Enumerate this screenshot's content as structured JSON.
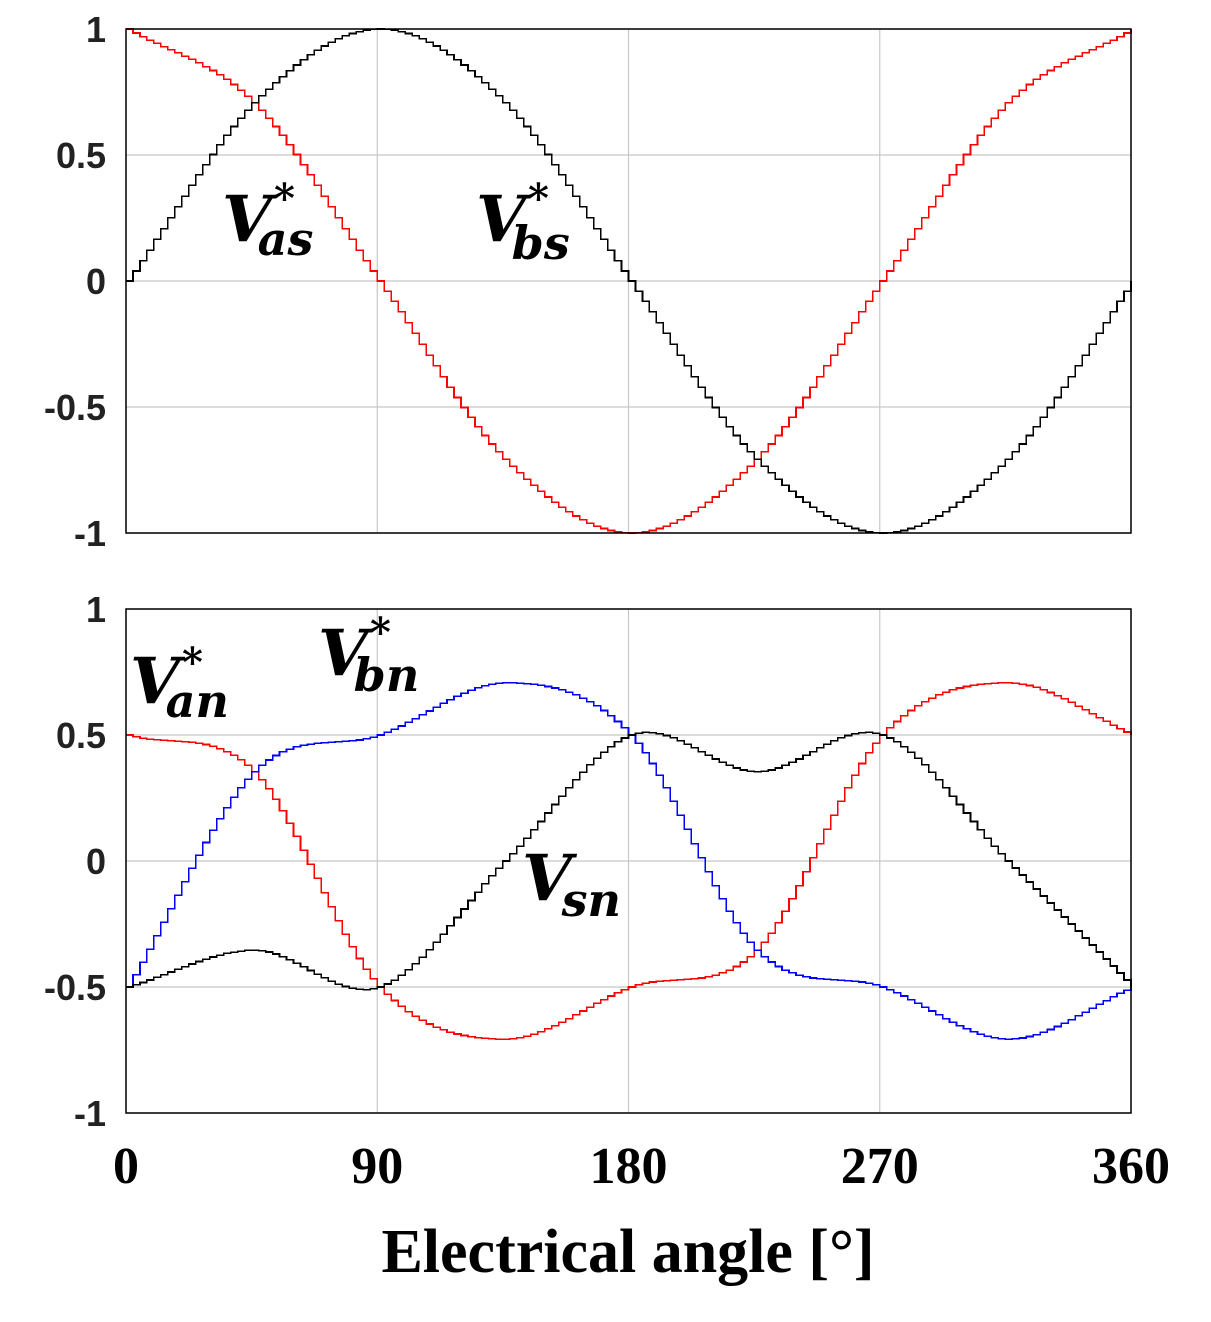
{
  "chart_data": [
    {
      "type": "line",
      "panel": "top",
      "xlim": [
        0,
        360
      ],
      "ylim": [
        -1,
        1
      ],
      "yticks": [
        1,
        0.5,
        0,
        -0.5,
        -1
      ],
      "ytick_labels": [
        "1",
        "0.5",
        "0",
        "-0.5",
        "-1"
      ],
      "xticks": [
        0,
        90,
        180,
        270,
        360
      ],
      "grid": true,
      "step_deg": 2.5,
      "series": [
        {
          "name": "V*as",
          "color": "#ff0000",
          "points": [
            [
              0,
              1.0
            ],
            [
              45,
              0.707
            ],
            [
              90,
              0.0
            ],
            [
              135,
              -0.707
            ],
            [
              180,
              -1.0
            ],
            [
              225,
              -0.707
            ],
            [
              270,
              0.0
            ],
            [
              315,
              0.707
            ],
            [
              360,
              1.0
            ]
          ]
        },
        {
          "name": "V*bs",
          "color": "#000000",
          "points": [
            [
              0,
              0.0
            ],
            [
              45,
              0.707
            ],
            [
              90,
              1.0
            ],
            [
              135,
              0.707
            ],
            [
              180,
              0.0
            ],
            [
              225,
              -0.707
            ],
            [
              270,
              -1.0
            ],
            [
              315,
              -0.707
            ],
            [
              360,
              0.0
            ]
          ]
        }
      ],
      "annotations": [
        {
          "main": "V",
          "sub": "as",
          "sup": "*"
        },
        {
          "main": "V",
          "sub": "bs",
          "sup": "*"
        }
      ]
    },
    {
      "type": "line",
      "panel": "bottom",
      "xlim": [
        0,
        360
      ],
      "ylim": [
        -1,
        1
      ],
      "yticks": [
        1,
        0.5,
        0,
        -0.5,
        -1
      ],
      "ytick_labels": [
        "1",
        "0.5",
        "0",
        "-0.5",
        "-1"
      ],
      "xticks": [
        0,
        90,
        180,
        270,
        360
      ],
      "xtick_labels": [
        "0",
        "90",
        "180",
        "270",
        "360"
      ],
      "xlabel": "Electrical angle [°]",
      "grid": true,
      "step_deg": 2.5,
      "series": [
        {
          "name": "V*an",
          "color": "#ff0000",
          "points": [
            [
              0,
              0.5
            ],
            [
              45,
              0.354
            ],
            [
              90,
              -0.5
            ],
            [
              135,
              -0.707
            ],
            [
              180,
              -0.5
            ],
            [
              225,
              -0.354
            ],
            [
              270,
              0.5
            ],
            [
              315,
              0.707
            ],
            [
              360,
              0.5
            ]
          ]
        },
        {
          "name": "V*bn",
          "color": "#0000ff",
          "points": [
            [
              0,
              -0.5
            ],
            [
              45,
              0.354
            ],
            [
              90,
              0.5
            ],
            [
              135,
              0.707
            ],
            [
              180,
              0.5
            ],
            [
              225,
              -0.354
            ],
            [
              270,
              -0.5
            ],
            [
              315,
              -0.707
            ],
            [
              360,
              -0.5
            ]
          ]
        },
        {
          "name": "Vsn",
          "color": "#000000",
          "points": [
            [
              0,
              -0.5
            ],
            [
              45,
              -0.354
            ],
            [
              90,
              -0.5
            ],
            [
              135,
              0.0
            ],
            [
              180,
              0.5
            ],
            [
              225,
              0.354
            ],
            [
              270,
              0.5
            ],
            [
              315,
              0.0
            ],
            [
              360,
              -0.5
            ]
          ]
        }
      ],
      "annotations": [
        {
          "main": "V",
          "sub": "an",
          "sup": "*"
        },
        {
          "main": "V",
          "sub": "bn",
          "sup": "*"
        },
        {
          "main": "V",
          "sub": "sn",
          "sup": ""
        }
      ]
    }
  ]
}
